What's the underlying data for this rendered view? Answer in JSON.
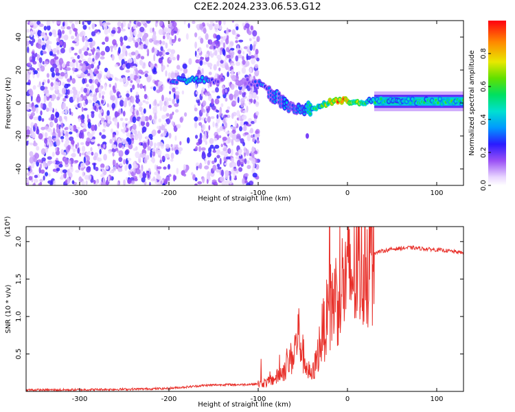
{
  "title": "C2E2.2024.233.06.53.G12",
  "chart_data": [
    {
      "type": "heatmap",
      "xlabel": "Height of straight line (km)",
      "ylabel": "Frequency (Hz)",
      "xlim": [
        -360,
        130
      ],
      "ylim": [
        -50,
        50
      ],
      "xticks": [
        -300,
        -200,
        -100,
        0,
        100
      ],
      "yticks": [
        -40,
        -20,
        0,
        20,
        40
      ],
      "colorbar": {
        "label": "Normalized spectral amplitude",
        "range": [
          0,
          1
        ],
        "ticks": [
          "0.0",
          "0.2",
          "0.4",
          "0.6",
          "0.8"
        ]
      },
      "track": {
        "x": [
          -200,
          -180,
          -160,
          -140,
          -120,
          -110,
          -100,
          -90,
          -80,
          -70,
          -60,
          -50,
          -40,
          -30,
          -20,
          -10,
          0,
          20,
          60,
          100,
          130
        ],
        "frequency": [
          14,
          14,
          14,
          14,
          13,
          13,
          12,
          8,
          3,
          0,
          -2,
          -3,
          -3,
          -2,
          1,
          1,
          1,
          1,
          1,
          1,
          1
        ],
        "amplitude": [
          0.3,
          0.45,
          0.4,
          0.15,
          0.1,
          0.2,
          0.35,
          0.3,
          0.35,
          0.4,
          0.35,
          0.45,
          0.5,
          0.6,
          0.8,
          0.9,
          0.9,
          0.55,
          0.5,
          0.55,
          0.6
        ]
      }
    },
    {
      "type": "line",
      "xlabel": "Height of straight line (km)",
      "ylabel": "SNR (10 * v/v)",
      "yscale_label": "(x10⁴)",
      "xlim": [
        -360,
        130
      ],
      "ylim": [
        0,
        2.2
      ],
      "xticks": [
        -300,
        -200,
        -100,
        0,
        100
      ],
      "yticks": [
        0.5,
        1.0,
        1.5,
        2.0
      ],
      "series": [
        {
          "color": "#e8302a",
          "x": [
            -360,
            -320,
            -280,
            -240,
            -200,
            -180,
            -160,
            -140,
            -120,
            -100,
            -90,
            -80,
            -70,
            -60,
            -55,
            -50,
            -45,
            -40,
            -35,
            -30,
            -25,
            -20,
            -15,
            -10,
            -5,
            0,
            10,
            20,
            30,
            50,
            70,
            90,
            110,
            130
          ],
          "y": [
            0.02,
            0.02,
            0.025,
            0.03,
            0.04,
            0.06,
            0.08,
            0.09,
            0.09,
            0.1,
            0.12,
            0.18,
            0.3,
            0.5,
            0.8,
            0.5,
            0.3,
            0.2,
            0.4,
            0.7,
            0.9,
            1.1,
            1.25,
            1.3,
            1.45,
            1.5,
            1.6,
            1.75,
            1.85,
            1.9,
            1.92,
            1.9,
            1.88,
            1.85
          ]
        }
      ]
    }
  ]
}
